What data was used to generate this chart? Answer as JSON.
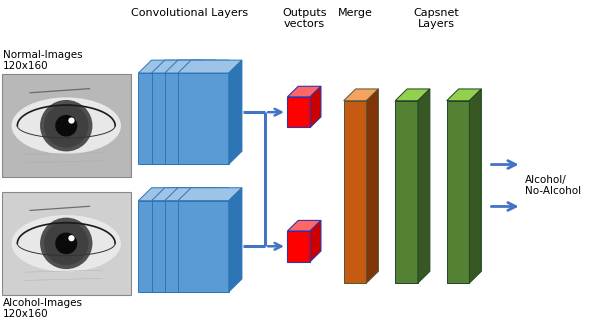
{
  "fig_width": 6.0,
  "fig_height": 3.26,
  "dpi": 100,
  "bg_color": "#ffffff",
  "labels": {
    "normal_images": "Normal-Images\n120x160",
    "alcohol_images": "Alcohol-Images\n120x160",
    "conv_layers": "Convolutional Layers",
    "output_vectors": "Outputs\nvectors",
    "merge": "Merge",
    "capsnet_layers": "Capsnet\nLayers",
    "output_label": "Alcohol/\nNo-Alcohol"
  },
  "colors": {
    "blue_face": "#5B9BD5",
    "blue_top": "#9DC3E6",
    "blue_side": "#2E75B6",
    "blue_edge": "#2E75B6",
    "red_face": "#FF0000",
    "red_top": "#FF6666",
    "red_side": "#CC0000",
    "red_edge": "#3333AA",
    "orange_face": "#C55A11",
    "orange_top": "#F4A460",
    "orange_side": "#7F3508",
    "green_face": "#548235",
    "green_top": "#92D050",
    "green_side": "#375723",
    "arrow_color": "#4472C4",
    "connector_color": "#4472C4"
  },
  "layout": {
    "xlim": [
      0,
      10
    ],
    "ylim": [
      0,
      5.5
    ]
  }
}
